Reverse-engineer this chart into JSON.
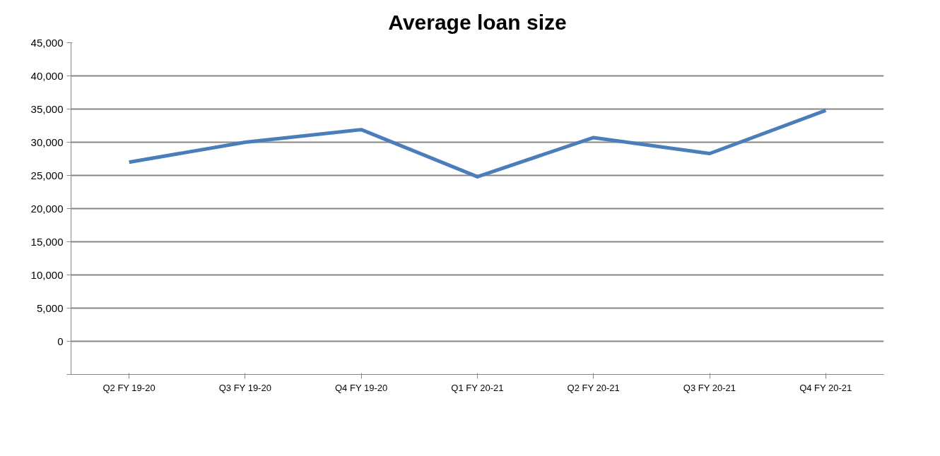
{
  "chart_data": {
    "type": "line",
    "title": "Average loan size",
    "categories": [
      "Q2 FY 19-20",
      "Q3 FY 19-20",
      "Q4 FY 19-20",
      "Q1 FY 20-21",
      "Q2 FY 20-21",
      "Q3 FY 20-21",
      "Q4 FY 20-21"
    ],
    "series": [
      {
        "color": "#4a7ebb",
        "values": [
          27000,
          30000,
          31900,
          24800,
          30700,
          28300,
          34800
        ]
      }
    ],
    "ylim": [
      -5000,
      45000
    ],
    "yticks": [
      {
        "value": -5000,
        "label": null
      },
      0,
      {
        "value": 5000,
        "label": "5,000"
      },
      {
        "value": 10000,
        "label": "10,000"
      },
      {
        "value": 15000,
        "label": "15,000"
      },
      {
        "value": 20000,
        "label": "20,000"
      },
      {
        "value": 25000,
        "label": "25,000"
      },
      {
        "value": 30000,
        "label": "30,000"
      },
      {
        "value": 35000,
        "label": "35,000"
      },
      {
        "value": 40000,
        "label": "40,000"
      },
      {
        "value": 45000,
        "label": "45,000"
      }
    ],
    "grid": "y",
    "marker": "none",
    "line_style": "solid"
  }
}
